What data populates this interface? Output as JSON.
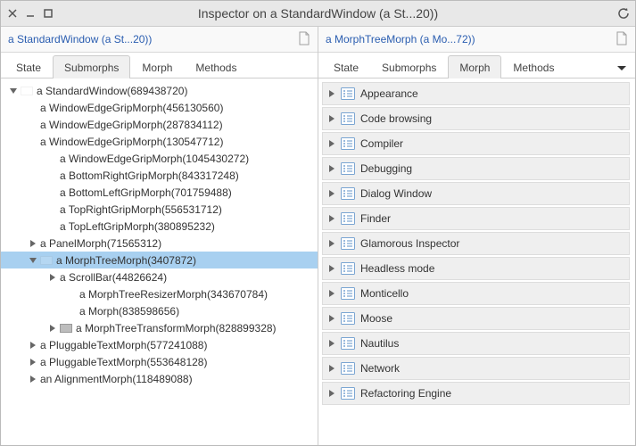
{
  "window": {
    "title": "Inspector on a StandardWindow (a St...20))"
  },
  "left": {
    "header": "a StandardWindow (a St...20))",
    "tabs": [
      "State",
      "Submorphs",
      "Morph",
      "Methods"
    ],
    "active_tab": 1,
    "tree": [
      {
        "indent": 0,
        "toggle": "down",
        "icon": "blank",
        "label": "a StandardWindow(689438720)",
        "selected": false
      },
      {
        "indent": 1,
        "toggle": "none",
        "icon": "none",
        "label": "a WindowEdgeGripMorph(456130560)",
        "selected": false
      },
      {
        "indent": 1,
        "toggle": "none",
        "icon": "none",
        "label": "a WindowEdgeGripMorph(287834112)",
        "selected": false
      },
      {
        "indent": 1,
        "toggle": "none",
        "icon": "none",
        "label": "a WindowEdgeGripMorph(130547712)",
        "selected": false
      },
      {
        "indent": 2,
        "toggle": "none",
        "icon": "none",
        "label": "a WindowEdgeGripMorph(1045430272)",
        "selected": false
      },
      {
        "indent": 2,
        "toggle": "none",
        "icon": "none",
        "label": "a BottomRightGripMorph(843317248)",
        "selected": false
      },
      {
        "indent": 2,
        "toggle": "none",
        "icon": "none",
        "label": "a BottomLeftGripMorph(701759488)",
        "selected": false
      },
      {
        "indent": 2,
        "toggle": "none",
        "icon": "none",
        "label": "a TopRightGripMorph(556531712)",
        "selected": false
      },
      {
        "indent": 2,
        "toggle": "none",
        "icon": "none",
        "label": "a TopLeftGripMorph(380895232)",
        "selected": false
      },
      {
        "indent": 1,
        "toggle": "right",
        "icon": "none",
        "label": "a PanelMorph(71565312)",
        "selected": false
      },
      {
        "indent": 1,
        "toggle": "down",
        "icon": "blank",
        "label": "a MorphTreeMorph(3407872)",
        "selected": true
      },
      {
        "indent": 2,
        "toggle": "right",
        "icon": "none",
        "label": "a ScrollBar(44826624)",
        "selected": false
      },
      {
        "indent": 3,
        "toggle": "none",
        "icon": "none",
        "label": "a MorphTreeResizerMorph(343670784)",
        "selected": false
      },
      {
        "indent": 3,
        "toggle": "none",
        "icon": "none",
        "label": "a Morph(838598656)",
        "selected": false
      },
      {
        "indent": 2,
        "toggle": "right",
        "icon": "grey",
        "label": "a MorphTreeTransformMorph(828899328)",
        "selected": false
      },
      {
        "indent": 1,
        "toggle": "right",
        "icon": "none",
        "label": "a PluggableTextMorph(577241088)",
        "selected": false
      },
      {
        "indent": 1,
        "toggle": "right",
        "icon": "none",
        "label": "a PluggableTextMorph(553648128)",
        "selected": false
      },
      {
        "indent": 1,
        "toggle": "right",
        "icon": "none",
        "label": "an AlignmentMorph(118489088)",
        "selected": false
      }
    ]
  },
  "right": {
    "header": "a MorphTreeMorph (a Mo...72))",
    "tabs": [
      "State",
      "Submorphs",
      "Morph",
      "Methods"
    ],
    "active_tab": 2,
    "categories": [
      "Appearance",
      "Code browsing",
      "Compiler",
      "Debugging",
      "Dialog Window",
      "Finder",
      "Glamorous Inspector",
      "Headless mode",
      "Monticello",
      "Moose",
      "Nautilus",
      "Network",
      "Refactoring Engine"
    ]
  },
  "colors": {
    "selection": "#a8d0f0",
    "tab_active_bg": "#f0f0f0",
    "cat_bg": "#efefef",
    "link": "#2a5db0"
  }
}
